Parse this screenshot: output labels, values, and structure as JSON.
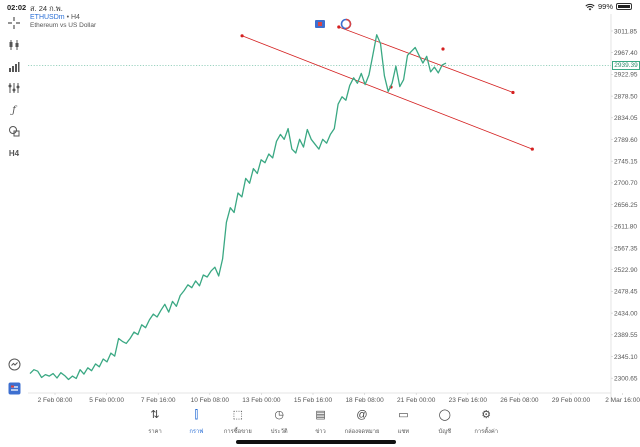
{
  "status_bar": {
    "time": "02:02",
    "date": "ส. 24 ก.พ.",
    "battery": "99%",
    "wifi_icon": "wifi-icon",
    "battery_icon": "battery-icon"
  },
  "chart_header": {
    "symbol": "ETHUSDm",
    "timeframe": "• H4",
    "description": "Ethereum vs US Dollar"
  },
  "toolbar": {
    "items": [
      {
        "name": "crosshair-icon"
      },
      {
        "name": "indicator-icon"
      },
      {
        "name": "volume-icon"
      },
      {
        "name": "settings-sliders-icon"
      },
      {
        "name": "function-icon"
      },
      {
        "name": "objects-icon"
      },
      {
        "name": "timeframe",
        "label": "H4"
      }
    ],
    "bottom": [
      {
        "name": "zoom-icon"
      },
      {
        "name": "trade-toggle-icon"
      }
    ]
  },
  "price_axis": {
    "ticks": [
      "3011.85",
      "2967.40",
      "2922.95",
      "2878.50",
      "2834.05",
      "2789.60",
      "2745.15",
      "2700.70",
      "2656.25",
      "2611.80",
      "2567.35",
      "2522.90",
      "2478.45",
      "2434.00",
      "2389.55",
      "2345.10",
      "2300.65"
    ],
    "current_price": "2939.39"
  },
  "date_axis": {
    "ticks": [
      "2 Feb 08:00",
      "5 Feb 00:00",
      "7 Feb 16:00",
      "10 Feb 08:00",
      "13 Feb 00:00",
      "15 Feb 16:00",
      "18 Feb 08:00",
      "21 Feb 00:00",
      "23 Feb 16:00",
      "26 Feb 08:00",
      "29 Feb 00:00",
      "2 Mar 16:00"
    ]
  },
  "chart_data": {
    "type": "line",
    "title": "",
    "xlabel": "",
    "ylabel": "",
    "ylim": [
      2290,
      3030
    ],
    "colors": {
      "line": "#3aa883",
      "channel": "#d42020",
      "grid_price": "#3aa883"
    },
    "series": [
      {
        "values": [
          2310,
          2318,
          2315,
          2302,
          2308,
          2305,
          2310,
          2301,
          2312,
          2306,
          2298,
          2305,
          2300,
          2318,
          2309,
          2322,
          2316,
          2330,
          2324,
          2340,
          2334,
          2352,
          2346,
          2382,
          2376,
          2372,
          2382,
          2395,
          2390,
          2410,
          2404,
          2420,
          2432,
          2426,
          2440,
          2452,
          2436,
          2458,
          2448,
          2470,
          2480,
          2492,
          2486,
          2500,
          2490,
          2512,
          2508,
          2520,
          2528,
          2510,
          2545,
          2620,
          2650,
          2640,
          2680,
          2672,
          2710,
          2700,
          2730,
          2720,
          2748,
          2742,
          2760,
          2752,
          2786,
          2800,
          2790,
          2812,
          2770,
          2762,
          2790,
          2774,
          2810,
          2790,
          2780,
          2770,
          2790,
          2782,
          2800,
          2812,
          2862,
          2877,
          2870,
          2900,
          2916,
          2905,
          2925,
          2902,
          2922,
          2962,
          3004,
          2986,
          2920,
          2888,
          2905,
          2940,
          2898,
          2912,
          2962,
          2970,
          2978,
          2962,
          2946,
          2960,
          2928,
          2938,
          2926,
          2942,
          2946
        ]
      }
    ],
    "trendlines": [
      {
        "from": {
          "x": "12 Feb",
          "y": 3002
        },
        "to": {
          "x": "27 Feb",
          "y": 2770
        }
      },
      {
        "from": {
          "x": "17 Feb",
          "y": 3020
        },
        "to": {
          "x": "26 Feb",
          "y": 2886
        }
      }
    ]
  },
  "tabs": [
    {
      "name": "tab-quotes",
      "label": "ราคา",
      "icon": "arrows-updown-icon",
      "active": false
    },
    {
      "name": "tab-chart",
      "label": "กราฟ",
      "icon": "candles-icon",
      "active": true
    },
    {
      "name": "tab-trade",
      "label": "การซื้อขาย",
      "icon": "trend-icon",
      "active": false
    },
    {
      "name": "tab-history",
      "label": "ประวัติ",
      "icon": "clock-icon",
      "active": false
    },
    {
      "name": "tab-news",
      "label": "ข่าว",
      "icon": "news-icon",
      "active": false
    },
    {
      "name": "tab-mailbox",
      "label": "กล่องจดหมาย",
      "icon": "at-icon",
      "active": false
    },
    {
      "name": "tab-chat",
      "label": "แชท",
      "icon": "chat-icon",
      "active": false
    },
    {
      "name": "tab-accounts",
      "label": "บัญชี",
      "icon": "user-icon",
      "active": false
    },
    {
      "name": "tab-settings",
      "label": "การตั้งค่า",
      "icon": "gear-icon",
      "active": false
    }
  ]
}
